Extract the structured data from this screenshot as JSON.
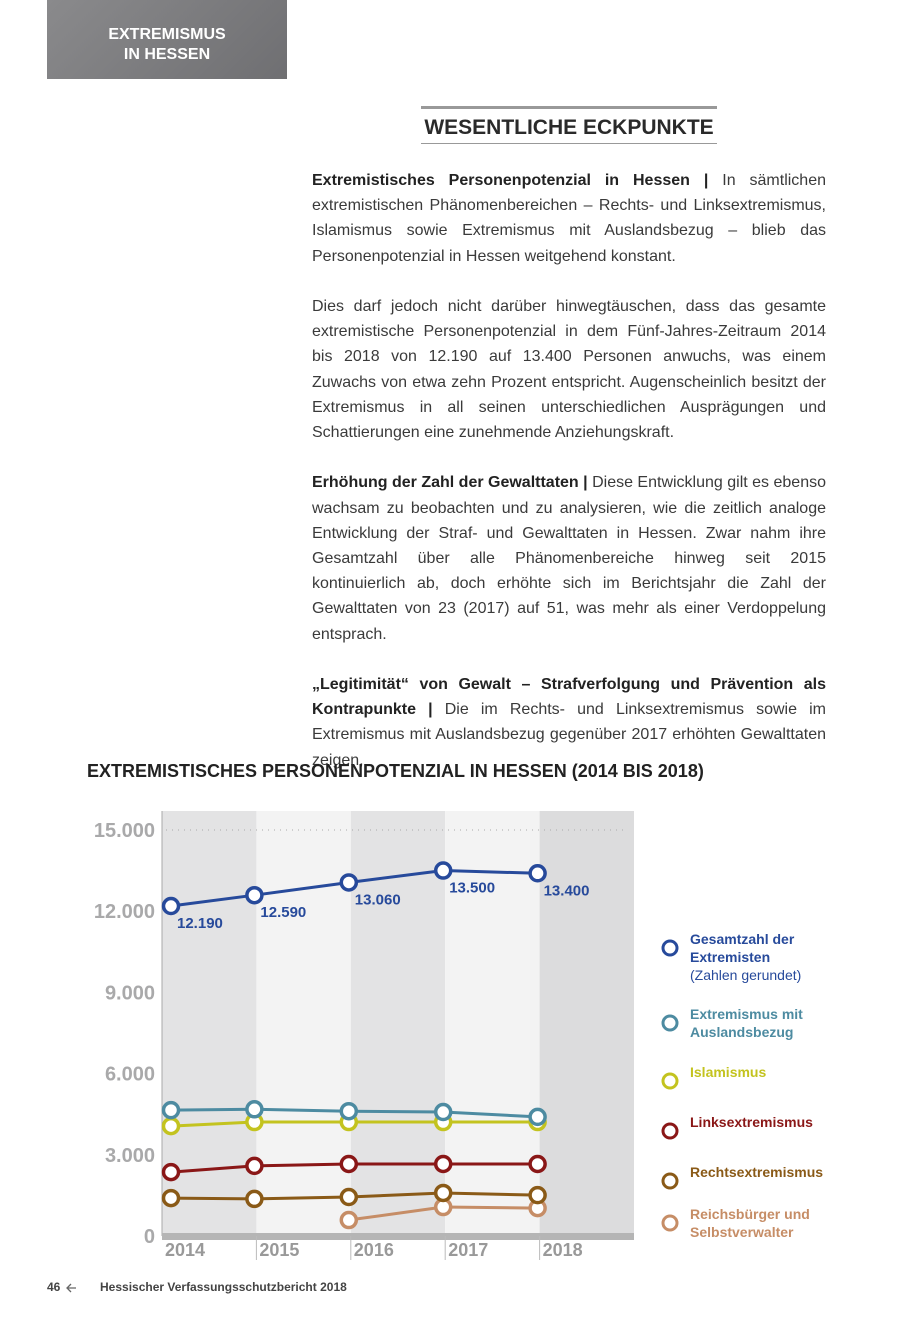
{
  "header": {
    "lines": [
      "EXTREMISMUS",
      "IN HESSEN"
    ]
  },
  "section_title": "WESENTLICHE ECKPUNKTE",
  "paragraphs": [
    {
      "lead": "Extremistisches Personenpotenzial in Hessen |",
      "text": "In sämtlichen extremistischen Phänomenbereichen – Rechts- und Linksextremismus, Islamismus sowie Extremismus mit Auslandsbezug – blieb das Personenpotenzial in Hessen weitgehend konstant."
    },
    {
      "text": "Dies darf jedoch nicht darüber hinwegtäuschen, dass das gesamte extremistische Personenpotenzial in dem Fünf-Jahres-Zeitraum 2014 bis 2018 von 12.190 auf 13.400 Personen anwuchs, was einem Zuwachs von etwa zehn Prozent entspricht. Augenscheinlich besitzt der Extremismus in all seinen unterschiedlichen Ausprägungen und Schattierungen eine zunehmende Anziehungskraft."
    },
    {
      "lead": "Erhöhung der Zahl der Gewalttaten |",
      "text": "Diese Entwicklung gilt es ebenso wachsam zu beobachten und zu analysieren, wie die zeitlich analoge Entwicklung der Straf- und Gewalttaten in Hessen. Zwar nahm ihre Gesamtzahl über alle Phänomenbereiche hinweg seit 2015 kontinuierlich ab, doch erhöhte sich im Berichtsjahr die Zahl der Gewalttaten von 23 (2017) auf 51, was mehr als einer Verdoppelung entsprach."
    },
    {
      "lead": "„Legitimität“ von Gewalt – Strafverfolgung und Prävention als Kontrapunkte |",
      "text": "Die im Rechts- und Linksextremismus sowie im Extremismus mit Auslandsbezug gegenüber 2017 erhöhten Gewalttaten zeigen,"
    }
  ],
  "chart_data": {
    "type": "line",
    "title": "EXTREMISTISCHES PERSONENPOTENZIAL IN HESSEN (2014 BIS 2018)",
    "categories": [
      "2014",
      "2015",
      "2016",
      "2017",
      "2018"
    ],
    "ylim": [
      0,
      15700
    ],
    "yticks": [
      0,
      {
        "value": 3000,
        "label": "3.000"
      },
      {
        "value": 6000,
        "label": "6.000"
      },
      {
        "value": 9000,
        "label": "9.000"
      },
      {
        "value": 12000,
        "label": "12.000"
      },
      {
        "value": 15000,
        "label": "15.000"
      }
    ],
    "legend_note": "(Zahlen gerundet)",
    "series": [
      {
        "name": "Gesamtzahl der Extremisten",
        "color": "#274a9b",
        "values": [
          12190,
          12590,
          13060,
          13500,
          13400
        ],
        "value_labels": [
          "12.190",
          "12.590",
          "13.060",
          "13.500",
          "13.400"
        ]
      },
      {
        "name": "Extremismus mit Auslandsbezug",
        "color": "#4d8ba1",
        "values": [
          4650,
          4680,
          4610,
          4580,
          4400
        ]
      },
      {
        "name": "Islamismus",
        "color": "#c3c31f",
        "values": [
          4060,
          4210,
          4210,
          4210,
          4210
        ]
      },
      {
        "name": "Linksextremismus",
        "color": "#8a1717",
        "values": [
          2360,
          2590,
          2660,
          2660,
          2660
        ]
      },
      {
        "name": "Rechtsextremismus",
        "color": "#8a5a17",
        "values": [
          1400,
          1370,
          1440,
          1590,
          1510
        ]
      },
      {
        "name": "Reichsbürger und Selbstverwalter",
        "color": "#c68d66",
        "values": [
          null,
          null,
          590,
          1070,
          1030
        ]
      }
    ]
  },
  "footer": {
    "page": "46",
    "title": "Hessischer Verfassungsschutzbericht 2018"
  }
}
